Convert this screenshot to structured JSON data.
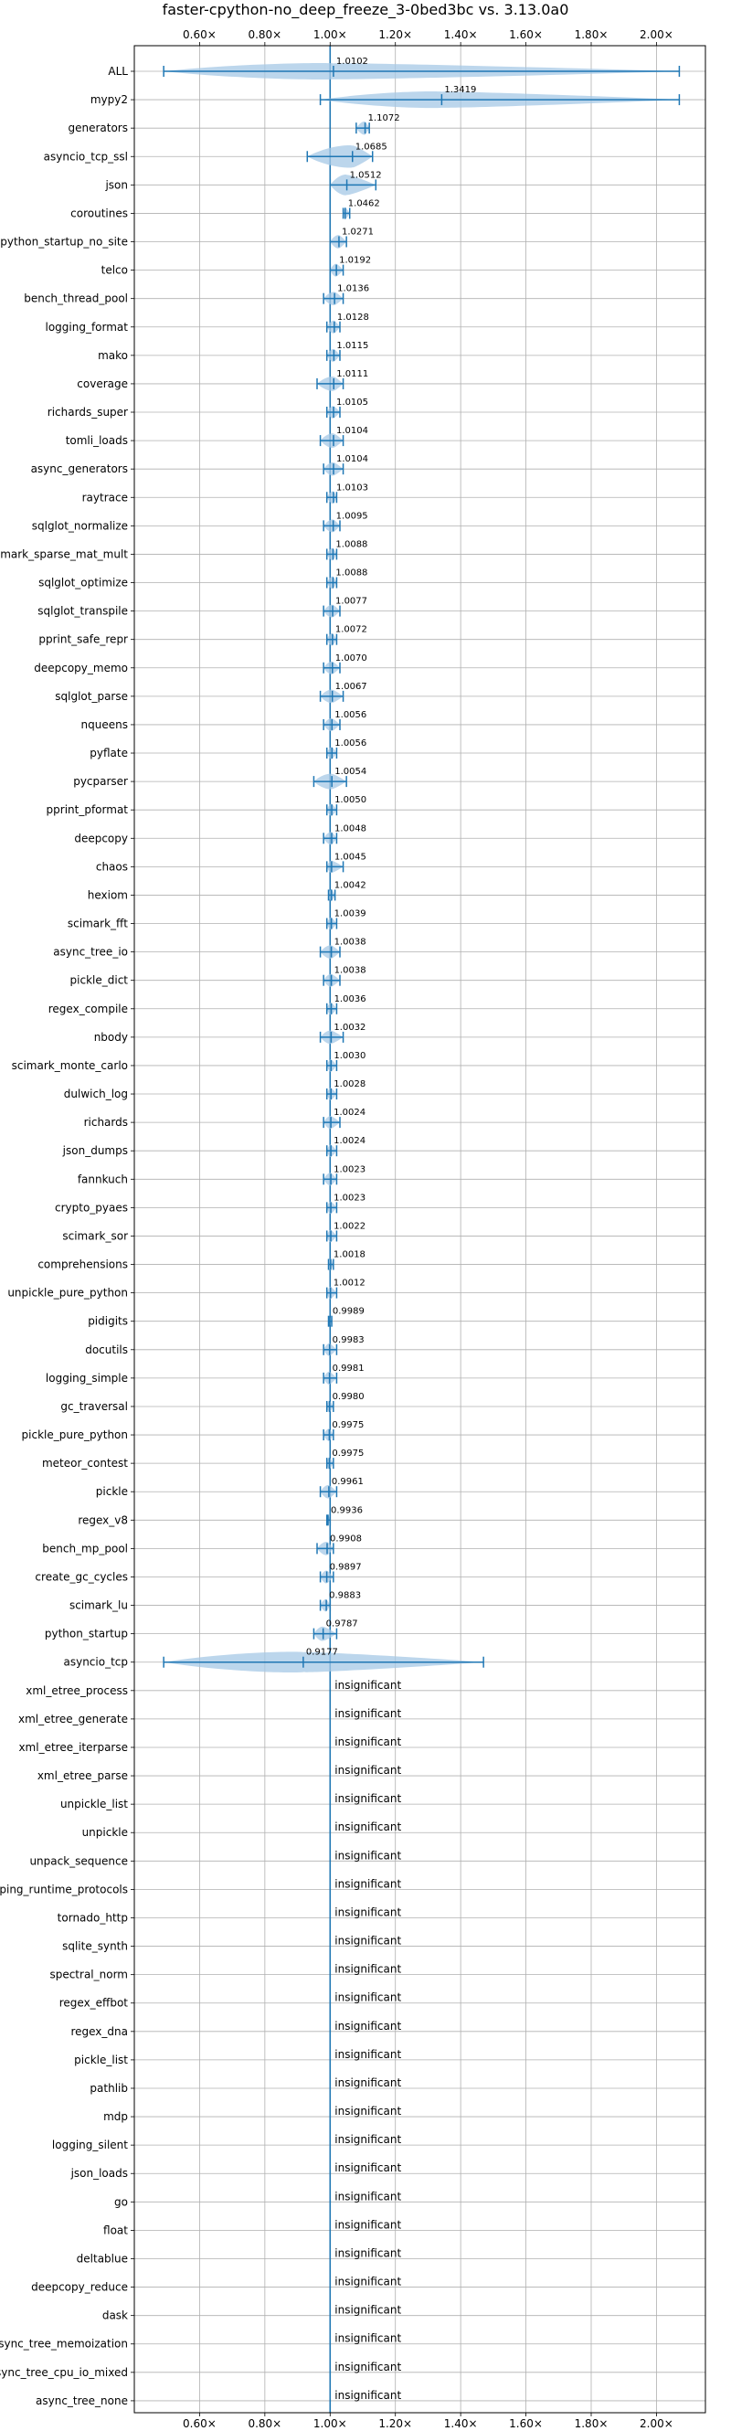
{
  "chart_data": {
    "type": "violin",
    "title": "faster-cpython-no_deep_freeze_3-0bed3bc vs. 3.13.0a0",
    "xlabel": "",
    "ylabel": "",
    "x_ticks": [
      "0.60×",
      "0.80×",
      "1.00×",
      "1.20×",
      "1.40×",
      "1.60×",
      "1.80×",
      "2.00×"
    ],
    "x_tick_values": [
      0.6,
      0.8,
      1.0,
      1.2,
      1.4,
      1.6,
      1.8,
      2.0
    ],
    "xlim": [
      0.4,
      2.15
    ],
    "reference_line": 1.0,
    "grid": true,
    "insignificant_label": "insignificant",
    "benchmarks": [
      {
        "name": "ALL",
        "label": "1.0102",
        "mean": 1.0102,
        "min": 0.49,
        "max": 2.07,
        "spread": 0.03
      },
      {
        "name": "mypy2",
        "label": "1.3419",
        "mean": 1.3419,
        "min": 0.97,
        "max": 2.07,
        "spread": 0.03
      },
      {
        "name": "generators",
        "label": "1.1072",
        "mean": 1.1072,
        "min": 1.08,
        "max": 1.12,
        "spread": 0.015
      },
      {
        "name": "asyncio_tcp_ssl",
        "label": "1.0685",
        "mean": 1.0685,
        "min": 0.93,
        "max": 1.13,
        "spread": 0.06
      },
      {
        "name": "json",
        "label": "1.0512",
        "mean": 1.0512,
        "min": 1.0,
        "max": 1.14,
        "spread": 0.05
      },
      {
        "name": "coroutines",
        "label": "1.0462",
        "mean": 1.0462,
        "min": 1.04,
        "max": 1.06,
        "spread": 0.01
      },
      {
        "name": "python_startup_no_site",
        "label": "1.0271",
        "mean": 1.0271,
        "min": 1.0,
        "max": 1.05,
        "spread": 0.015
      },
      {
        "name": "telco",
        "label": "1.0192",
        "mean": 1.0192,
        "min": 1.0,
        "max": 1.04,
        "spread": 0.012
      },
      {
        "name": "bench_thread_pool",
        "label": "1.0136",
        "mean": 1.0136,
        "min": 0.98,
        "max": 1.04,
        "spread": 0.015
      },
      {
        "name": "logging_format",
        "label": "1.0128",
        "mean": 1.0128,
        "min": 0.99,
        "max": 1.03,
        "spread": 0.012
      },
      {
        "name": "mako",
        "label": "1.0115",
        "mean": 1.0115,
        "min": 0.99,
        "max": 1.03,
        "spread": 0.012
      },
      {
        "name": "coverage",
        "label": "1.0111",
        "mean": 1.0111,
        "min": 0.96,
        "max": 1.04,
        "spread": 0.02
      },
      {
        "name": "richards_super",
        "label": "1.0105",
        "mean": 1.0105,
        "min": 0.99,
        "max": 1.03,
        "spread": 0.01
      },
      {
        "name": "tomli_loads",
        "label": "1.0104",
        "mean": 1.0104,
        "min": 0.97,
        "max": 1.04,
        "spread": 0.02
      },
      {
        "name": "async_generators",
        "label": "1.0104",
        "mean": 1.0104,
        "min": 0.98,
        "max": 1.04,
        "spread": 0.015
      },
      {
        "name": "raytrace",
        "label": "1.0103",
        "mean": 1.0103,
        "min": 0.99,
        "max": 1.02,
        "spread": 0.01
      },
      {
        "name": "sqlglot_normalize",
        "label": "1.0095",
        "mean": 1.0095,
        "min": 0.98,
        "max": 1.03,
        "spread": 0.012
      },
      {
        "name": "scimark_sparse_mat_mult",
        "label": "1.0088",
        "mean": 1.0088,
        "min": 0.99,
        "max": 1.02,
        "spread": 0.01
      },
      {
        "name": "sqlglot_optimize",
        "label": "1.0088",
        "mean": 1.0088,
        "min": 0.99,
        "max": 1.02,
        "spread": 0.01
      },
      {
        "name": "sqlglot_transpile",
        "label": "1.0077",
        "mean": 1.0077,
        "min": 0.98,
        "max": 1.03,
        "spread": 0.012
      },
      {
        "name": "pprint_safe_repr",
        "label": "1.0072",
        "mean": 1.0072,
        "min": 0.99,
        "max": 1.02,
        "spread": 0.01
      },
      {
        "name": "deepcopy_memo",
        "label": "1.0070",
        "mean": 1.007,
        "min": 0.98,
        "max": 1.03,
        "spread": 0.012
      },
      {
        "name": "sqlglot_parse",
        "label": "1.0067",
        "mean": 1.0067,
        "min": 0.97,
        "max": 1.04,
        "spread": 0.015
      },
      {
        "name": "nqueens",
        "label": "1.0056",
        "mean": 1.0056,
        "min": 0.98,
        "max": 1.03,
        "spread": 0.012
      },
      {
        "name": "pyflate",
        "label": "1.0056",
        "mean": 1.0056,
        "min": 0.99,
        "max": 1.02,
        "spread": 0.01
      },
      {
        "name": "pycparser",
        "label": "1.0054",
        "mean": 1.0054,
        "min": 0.95,
        "max": 1.05,
        "spread": 0.025
      },
      {
        "name": "pprint_pformat",
        "label": "1.0050",
        "mean": 1.005,
        "min": 0.99,
        "max": 1.02,
        "spread": 0.01
      },
      {
        "name": "deepcopy",
        "label": "1.0048",
        "mean": 1.0048,
        "min": 0.98,
        "max": 1.02,
        "spread": 0.012
      },
      {
        "name": "chaos",
        "label": "1.0045",
        "mean": 1.0045,
        "min": 0.99,
        "max": 1.04,
        "spread": 0.01
      },
      {
        "name": "hexiom",
        "label": "1.0042",
        "mean": 1.0042,
        "min": 0.995,
        "max": 1.015,
        "spread": 0.008
      },
      {
        "name": "scimark_fft",
        "label": "1.0039",
        "mean": 1.0039,
        "min": 0.99,
        "max": 1.02,
        "spread": 0.01
      },
      {
        "name": "async_tree_io",
        "label": "1.0038",
        "mean": 1.0038,
        "min": 0.97,
        "max": 1.03,
        "spread": 0.015
      },
      {
        "name": "pickle_dict",
        "label": "1.0038",
        "mean": 1.0038,
        "min": 0.98,
        "max": 1.03,
        "spread": 0.012
      },
      {
        "name": "regex_compile",
        "label": "1.0036",
        "mean": 1.0036,
        "min": 0.99,
        "max": 1.02,
        "spread": 0.01
      },
      {
        "name": "nbody",
        "label": "1.0032",
        "mean": 1.0032,
        "min": 0.97,
        "max": 1.04,
        "spread": 0.015
      },
      {
        "name": "scimark_monte_carlo",
        "label": "1.0030",
        "mean": 1.003,
        "min": 0.99,
        "max": 1.02,
        "spread": 0.01
      },
      {
        "name": "dulwich_log",
        "label": "1.0028",
        "mean": 1.0028,
        "min": 0.99,
        "max": 1.02,
        "spread": 0.01
      },
      {
        "name": "richards",
        "label": "1.0024",
        "mean": 1.0024,
        "min": 0.98,
        "max": 1.03,
        "spread": 0.012
      },
      {
        "name": "json_dumps",
        "label": "1.0024",
        "mean": 1.0024,
        "min": 0.99,
        "max": 1.02,
        "spread": 0.01
      },
      {
        "name": "fannkuch",
        "label": "1.0023",
        "mean": 1.0023,
        "min": 0.98,
        "max": 1.02,
        "spread": 0.012
      },
      {
        "name": "crypto_pyaes",
        "label": "1.0023",
        "mean": 1.0023,
        "min": 0.99,
        "max": 1.02,
        "spread": 0.01
      },
      {
        "name": "scimark_sor",
        "label": "1.0022",
        "mean": 1.0022,
        "min": 0.99,
        "max": 1.02,
        "spread": 0.01
      },
      {
        "name": "comprehensions",
        "label": "1.0018",
        "mean": 1.0018,
        "min": 0.995,
        "max": 1.01,
        "spread": 0.008
      },
      {
        "name": "unpickle_pure_python",
        "label": "1.0012",
        "mean": 1.0012,
        "min": 0.99,
        "max": 1.02,
        "spread": 0.01
      },
      {
        "name": "pidigits",
        "label": "0.9989",
        "mean": 0.9989,
        "min": 0.995,
        "max": 1.005,
        "spread": 0.005
      },
      {
        "name": "docutils",
        "label": "0.9983",
        "mean": 0.9983,
        "min": 0.98,
        "max": 1.02,
        "spread": 0.01
      },
      {
        "name": "logging_simple",
        "label": "0.9981",
        "mean": 0.9981,
        "min": 0.98,
        "max": 1.02,
        "spread": 0.012
      },
      {
        "name": "gc_traversal",
        "label": "0.9980",
        "mean": 0.998,
        "min": 0.99,
        "max": 1.01,
        "spread": 0.008
      },
      {
        "name": "pickle_pure_python",
        "label": "0.9975",
        "mean": 0.9975,
        "min": 0.98,
        "max": 1.01,
        "spread": 0.01
      },
      {
        "name": "meteor_contest",
        "label": "0.9975",
        "mean": 0.9975,
        "min": 0.99,
        "max": 1.01,
        "spread": 0.008
      },
      {
        "name": "pickle",
        "label": "0.9961",
        "mean": 0.9961,
        "min": 0.97,
        "max": 1.02,
        "spread": 0.015
      },
      {
        "name": "regex_v8",
        "label": "0.9936",
        "mean": 0.9936,
        "min": 0.99,
        "max": 1.0,
        "spread": 0.005
      },
      {
        "name": "bench_mp_pool",
        "label": "0.9908",
        "mean": 0.9908,
        "min": 0.96,
        "max": 1.01,
        "spread": 0.015
      },
      {
        "name": "create_gc_cycles",
        "label": "0.9897",
        "mean": 0.9897,
        "min": 0.97,
        "max": 1.01,
        "spread": 0.012
      },
      {
        "name": "scimark_lu",
        "label": "0.9883",
        "mean": 0.9883,
        "min": 0.97,
        "max": 1.0,
        "spread": 0.01
      },
      {
        "name": "python_startup",
        "label": "0.9787",
        "mean": 0.9787,
        "min": 0.95,
        "max": 1.02,
        "spread": 0.02
      },
      {
        "name": "asyncio_tcp",
        "label": "0.9177",
        "mean": 0.9177,
        "min": 0.49,
        "max": 1.47,
        "spread": 0.05
      },
      {
        "name": "xml_etree_process",
        "label": "",
        "insignificant": true
      },
      {
        "name": "xml_etree_generate",
        "label": "",
        "insignificant": true
      },
      {
        "name": "xml_etree_iterparse",
        "label": "",
        "insignificant": true
      },
      {
        "name": "xml_etree_parse",
        "label": "",
        "insignificant": true
      },
      {
        "name": "unpickle_list",
        "label": "",
        "insignificant": true
      },
      {
        "name": "unpickle",
        "label": "",
        "insignificant": true
      },
      {
        "name": "unpack_sequence",
        "label": "",
        "insignificant": true
      },
      {
        "name": "typing_runtime_protocols",
        "label": "",
        "insignificant": true
      },
      {
        "name": "tornado_http",
        "label": "",
        "insignificant": true
      },
      {
        "name": "sqlite_synth",
        "label": "",
        "insignificant": true
      },
      {
        "name": "spectral_norm",
        "label": "",
        "insignificant": true
      },
      {
        "name": "regex_effbot",
        "label": "",
        "insignificant": true
      },
      {
        "name": "regex_dna",
        "label": "",
        "insignificant": true
      },
      {
        "name": "pickle_list",
        "label": "",
        "insignificant": true
      },
      {
        "name": "pathlib",
        "label": "",
        "insignificant": true
      },
      {
        "name": "mdp",
        "label": "",
        "insignificant": true
      },
      {
        "name": "logging_silent",
        "label": "",
        "insignificant": true
      },
      {
        "name": "json_loads",
        "label": "",
        "insignificant": true
      },
      {
        "name": "go",
        "label": "",
        "insignificant": true
      },
      {
        "name": "float",
        "label": "",
        "insignificant": true
      },
      {
        "name": "deltablue",
        "label": "",
        "insignificant": true
      },
      {
        "name": "deepcopy_reduce",
        "label": "",
        "insignificant": true
      },
      {
        "name": "dask",
        "label": "",
        "insignificant": true
      },
      {
        "name": "async_tree_memoization",
        "label": "",
        "insignificant": true
      },
      {
        "name": "async_tree_cpu_io_mixed",
        "label": "",
        "insignificant": true
      },
      {
        "name": "async_tree_none",
        "label": "",
        "insignificant": true
      }
    ],
    "colors": {
      "line": "#1f77b4",
      "fill": "#a6c8e6",
      "grid": "#b0b0b0",
      "text": "#000000"
    }
  }
}
